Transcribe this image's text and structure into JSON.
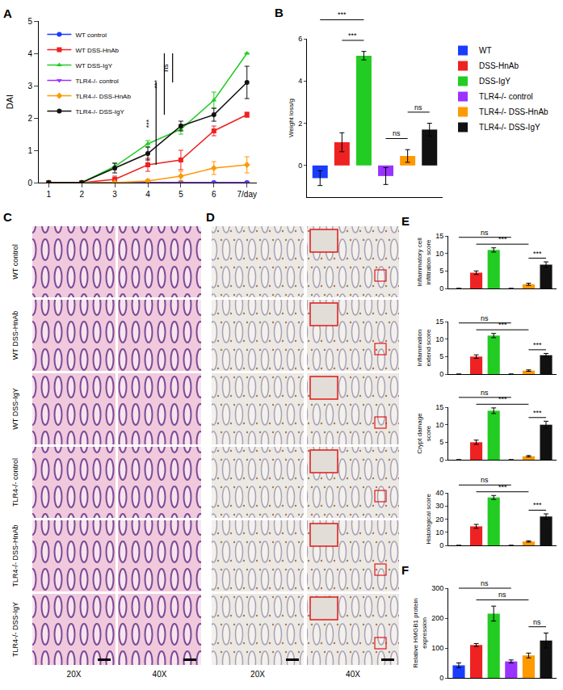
{
  "chart_data": [
    {
      "label": "A",
      "type": "line",
      "ylabel": "DAI",
      "x": [
        1,
        2,
        3,
        4,
        5,
        6,
        7
      ],
      "xlim": [
        0.7,
        7.3
      ],
      "xticks": [
        1,
        2,
        3,
        4,
        5,
        6,
        {
          "value": 7,
          "label": "7/day"
        }
      ],
      "ylim": [
        0,
        5
      ],
      "yticks": [
        0,
        1,
        2,
        3,
        4,
        5
      ],
      "grid": false,
      "legend": "top left",
      "series": [
        {
          "name": "WT control",
          "color": "#1a3cff",
          "marker": "circle",
          "values": [
            0,
            0,
            0,
            0,
            0,
            0,
            0
          ],
          "errors": [
            0,
            0,
            0,
            0,
            0,
            0,
            0
          ]
        },
        {
          "name": "WT DSS-HnAb",
          "color": "#ee2222",
          "marker": "square",
          "values": [
            0,
            0,
            0.1,
            0.55,
            0.7,
            1.6,
            2.1
          ],
          "errors": [
            0,
            0,
            0.1,
            0.2,
            0.3,
            0.15,
            0.08
          ]
        },
        {
          "name": "WT DSS-IgY",
          "color": "#22cc22",
          "marker": "triangle-up",
          "values": [
            0,
            0,
            0.5,
            1.2,
            1.65,
            2.55,
            4.0
          ],
          "errors": [
            0,
            0,
            0.1,
            0.1,
            0.15,
            0.25,
            0
          ]
        },
        {
          "name": "TLR4-/- control",
          "color": "#9933ff",
          "marker": "triangle-down",
          "values": [
            0,
            0,
            0,
            0,
            0,
            0,
            0
          ],
          "errors": [
            0,
            0,
            0,
            0,
            0,
            0,
            0
          ]
        },
        {
          "name": "TLR4-/- DSS-HnAb",
          "color": "#ff9900",
          "marker": "diamond",
          "values": [
            0,
            0,
            0,
            0.05,
            0.2,
            0.45,
            0.55
          ],
          "errors": [
            0,
            0,
            0,
            0.05,
            0.15,
            0.2,
            0.25
          ]
        },
        {
          "name": "TLR4-/- DSS-IgY",
          "color": "#111111",
          "marker": "circle",
          "values": [
            0,
            0,
            0.45,
            0.9,
            1.75,
            2.1,
            3.1
          ],
          "errors": [
            0,
            0,
            0.15,
            0.2,
            0.15,
            0.2,
            0.5
          ]
        }
      ],
      "annotations": [
        "***",
        "***",
        "ns"
      ]
    },
    {
      "label": "B",
      "type": "bar",
      "ylabel": [
        "Weight loss/g"
      ],
      "categories": [
        "WT",
        "DSS-HnAb",
        "DSS-IgY",
        "TLR4-/- control",
        "TLR4-/- DSS-HnAb",
        "TLR4-/- DSS-IgY"
      ],
      "values": [
        -0.6,
        1.1,
        5.2,
        -0.5,
        0.45,
        1.7
      ],
      "errors": [
        0.35,
        0.45,
        0.2,
        0.4,
        0.3,
        0.3
      ],
      "colors": [
        "#1a3cff",
        "#ee2222",
        "#22cc22",
        "#9933ff",
        "#ff9900",
        "#111111"
      ],
      "ylim": [
        -1.5,
        6
      ],
      "yticks": [
        0,
        2,
        4,
        6
      ],
      "tick_labels": "y",
      "legend": "right",
      "grid": false,
      "annotations": [
        "***",
        "***",
        "ns",
        "ns"
      ]
    },
    {
      "label": "E",
      "type": "bar",
      "ylabel": [
        "Inflammatory cell",
        "infiltration score"
      ],
      "categories": [
        "WT",
        "DSS-HnAb",
        "DSS-IgY",
        "TLR4-/- control",
        "TLR4-/- DSS-HnAb",
        "TLR4-/- DSS-IgY"
      ],
      "values": [
        0,
        4.5,
        11,
        0,
        1.2,
        6.8
      ],
      "errors": [
        0,
        0.5,
        0.6,
        0,
        0.3,
        0.8
      ],
      "colors": [
        "#1a3cff",
        "#ee2222",
        "#22cc22",
        "#9933ff",
        "#ff9900",
        "#111111"
      ],
      "ylim": [
        0,
        15
      ],
      "yticks": [
        0,
        5,
        10,
        15
      ],
      "tick_labels": "y",
      "grid": false,
      "annotations": [
        "ns",
        "***",
        "***"
      ]
    },
    {
      "type": "bar",
      "ylabel": [
        "Inflammation",
        "extend score"
      ],
      "categories": [
        "WT",
        "DSS-HnAb",
        "DSS-IgY",
        "TLR4-/- control",
        "TLR4-/- DSS-HnAb",
        "TLR4-/- DSS-IgY"
      ],
      "values": [
        0,
        5,
        11,
        0,
        1,
        5.4
      ],
      "errors": [
        0,
        0.5,
        0.6,
        0,
        0.2,
        0.5
      ],
      "colors": [
        "#1a3cff",
        "#ee2222",
        "#22cc22",
        "#9933ff",
        "#ff9900",
        "#111111"
      ],
      "ylim": [
        0,
        15
      ],
      "yticks": [
        0,
        5,
        10,
        15
      ],
      "tick_labels": "y",
      "grid": false,
      "annotations": [
        "ns",
        "***",
        "***"
      ]
    },
    {
      "type": "bar",
      "ylabel": [
        "Crypt damage",
        "score"
      ],
      "categories": [
        "WT",
        "DSS-HnAb",
        "DSS-IgY",
        "TLR4-/- control",
        "TLR4-/- DSS-HnAb",
        "TLR4-/- DSS-IgY"
      ],
      "values": [
        0,
        5,
        14,
        0,
        1,
        10
      ],
      "errors": [
        0,
        0.6,
        0.8,
        0,
        0.2,
        1.0
      ],
      "colors": [
        "#1a3cff",
        "#ee2222",
        "#22cc22",
        "#9933ff",
        "#ff9900",
        "#111111"
      ],
      "ylim": [
        0,
        15
      ],
      "yticks": [
        0,
        5,
        10,
        15
      ],
      "tick_labels": "y",
      "grid": false,
      "annotations": [
        "ns",
        "***",
        "***"
      ]
    },
    {
      "type": "bar",
      "ylabel": [
        "Histological score"
      ],
      "categories": [
        "WT",
        "DSS-HnAb",
        "DSS-IgY",
        "TLR4-/- control",
        "TLR4-/- DSS-HnAb",
        "TLR4-/- DSS-IgY"
      ],
      "values": [
        0,
        14.5,
        36.5,
        0,
        3,
        22
      ],
      "errors": [
        0,
        1.5,
        1.5,
        0,
        0.5,
        2.0
      ],
      "colors": [
        "#1a3cff",
        "#ee2222",
        "#22cc22",
        "#9933ff",
        "#ff9900",
        "#111111"
      ],
      "ylim": [
        0,
        40
      ],
      "yticks": [
        0,
        10,
        20,
        30,
        40
      ],
      "tick_labels": "y",
      "grid": false,
      "annotations": [
        "ns",
        "***",
        "***"
      ]
    },
    {
      "label": "F",
      "type": "bar",
      "ylabel": [
        "Relative HMGB1 protein",
        "expression"
      ],
      "categories": [
        "WT",
        "DSS-HnAb",
        "DSS-IgY",
        "TLR4-/- control",
        "TLR4-/- DSS-HnAb",
        "TLR4-/- DSS-IgY"
      ],
      "values": [
        42,
        110,
        215,
        55,
        75,
        125
      ],
      "errors": [
        8,
        5,
        25,
        5,
        8,
        25
      ],
      "colors": [
        "#1a3cff",
        "#ee2222",
        "#22cc22",
        "#9933ff",
        "#ff9900",
        "#111111"
      ],
      "ylim": [
        0,
        300
      ],
      "yticks": [
        0,
        100,
        200,
        300
      ],
      "tick_labels": "y",
      "grid": false,
      "annotations": [
        "ns",
        "ns",
        "ns"
      ]
    }
  ],
  "image_panels": [
    {
      "label": "C",
      "rows": [
        "WT control",
        "WT DSS-HnAb",
        "WT DSS-IgY",
        "TLR4-/- control",
        "TLR4-/- DSS-HnAb",
        "TLR4-/- DSS-IgY"
      ],
      "columns": [
        "20X",
        "40X"
      ]
    },
    {
      "label": "D",
      "columns": [
        "20X",
        "40X"
      ]
    }
  ]
}
